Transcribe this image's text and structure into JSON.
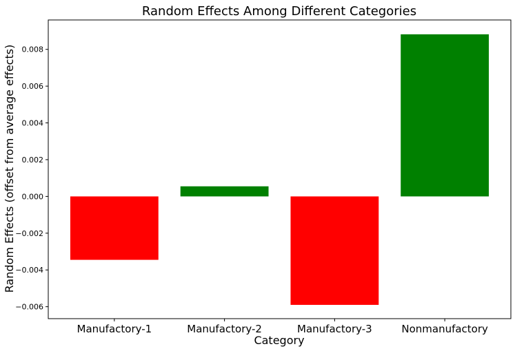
{
  "chart_data": {
    "type": "bar",
    "title": "Random Effects Among Different Categories",
    "xlabel": "Category",
    "ylabel": "Random Effects (offset from average effects)",
    "categories": [
      "Manufactory-1",
      "Manufactory-2",
      "Manufactory-3",
      "Nonmanufactory"
    ],
    "values": [
      -0.00345,
      0.00055,
      -0.0059,
      0.00882
    ],
    "ylim": [
      -0.00665,
      0.0096
    ],
    "yticks": [
      -0.006,
      -0.004,
      -0.002,
      0.0,
      0.002,
      0.004,
      0.006,
      0.008
    ],
    "ytick_labels": [
      "−0.006",
      "−0.004",
      "−0.002",
      "0.000",
      "0.002",
      "0.004",
      "0.006",
      "0.008"
    ],
    "positive_color": "#008000",
    "negative_color": "#ff0000",
    "grid": false,
    "legend": "none"
  }
}
